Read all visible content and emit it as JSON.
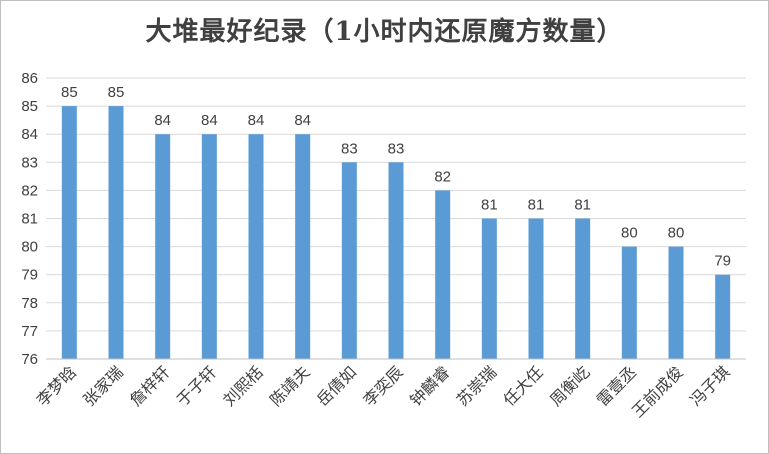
{
  "chart_data": {
    "type": "bar",
    "title": "大堆最好纪录（1小时内还原魔方数量）",
    "categories": [
      "李梦晗",
      "张家瑞",
      "詹梓轩",
      "于子轩",
      "刘熙栝",
      "陈靖夫",
      "岳倩如",
      "李奕辰",
      "钟麟睿",
      "苏崇瑞",
      "任大任",
      "周衡屹",
      "雷壹丞",
      "王前成俊",
      "冯子琪"
    ],
    "values": [
      85,
      85,
      84,
      84,
      84,
      84,
      83,
      83,
      82,
      81,
      81,
      81,
      80,
      80,
      79
    ],
    "ylim": [
      76,
      86
    ],
    "yticks": [
      76,
      77,
      78,
      79,
      80,
      81,
      82,
      83,
      84,
      85,
      86
    ],
    "xlabel": "",
    "ylabel": "",
    "grid": true,
    "legend": "none",
    "bar_color": "#5b9bd5",
    "grid_color": "#d9d9d9"
  }
}
